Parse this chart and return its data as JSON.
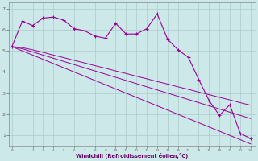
{
  "xlabel": "Windchill (Refroidissement éolien,°C)",
  "background_color": "#cce8e8",
  "grid_color": "#aacccc",
  "line_color": "#990099",
  "x_ticks": [
    0,
    1,
    2,
    3,
    4,
    5,
    6,
    7,
    8,
    9,
    10,
    11,
    12,
    13,
    14,
    15,
    16,
    17,
    18,
    19,
    20,
    21,
    22,
    23
  ],
  "y_ticks": [
    1,
    2,
    3,
    4,
    5,
    6,
    7
  ],
  "ylim": [
    0.5,
    7.3
  ],
  "xlim": [
    -0.3,
    23.5
  ],
  "series1_y": [
    5.2,
    6.4,
    6.2,
    6.55,
    6.6,
    6.45,
    6.05,
    5.95,
    5.7,
    5.6,
    6.3,
    5.8,
    5.8,
    6.05,
    6.75,
    5.55,
    5.05,
    4.7,
    3.65,
    2.65,
    1.95,
    2.45,
    1.1,
    0.85
  ],
  "series2_y": [
    5.2,
    5.0,
    4.8,
    4.6,
    4.4,
    4.2,
    4.0,
    3.8,
    3.6,
    3.4,
    3.2,
    3.0,
    2.8,
    2.6,
    2.4,
    2.2,
    2.0,
    1.8,
    1.6,
    1.4,
    1.2,
    1.0,
    0.8,
    0.6
  ],
  "series3_y": [
    5.2,
    5.1,
    4.95,
    4.8,
    4.65,
    4.5,
    4.35,
    4.2,
    4.05,
    3.9,
    3.75,
    3.6,
    3.45,
    3.3,
    3.15,
    3.0,
    2.85,
    2.7,
    2.55,
    2.4,
    2.25,
    2.1,
    1.95,
    1.8
  ],
  "series4_y": [
    5.2,
    5.15,
    5.05,
    4.93,
    4.8,
    4.68,
    4.55,
    4.43,
    4.3,
    4.18,
    4.05,
    3.93,
    3.8,
    3.68,
    3.55,
    3.43,
    3.3,
    3.18,
    3.05,
    2.93,
    2.8,
    2.68,
    2.55,
    2.43
  ]
}
